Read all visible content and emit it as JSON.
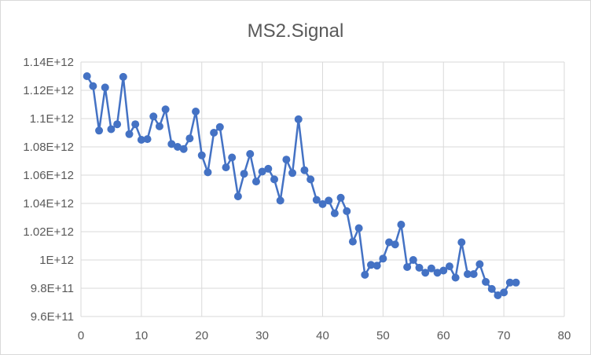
{
  "chart_data": {
    "type": "scatter",
    "title": "MS2.Signal",
    "xlabel": "",
    "ylabel": "",
    "xlim": [
      0,
      80
    ],
    "ylim": [
      960000000000,
      1140000000000
    ],
    "x_ticks": [
      0,
      10,
      20,
      30,
      40,
      50,
      60,
      70,
      80
    ],
    "x_tick_labels": [
      "0",
      "10",
      "20",
      "30",
      "40",
      "50",
      "60",
      "70",
      "80"
    ],
    "y_ticks": [
      960000000000,
      980000000000,
      1000000000000,
      1020000000000,
      1040000000000,
      1060000000000,
      1080000000000,
      1100000000000,
      1120000000000,
      1140000000000
    ],
    "y_tick_labels": [
      "9.6E+11",
      "9.8E+11",
      "1E+12",
      "1.02E+12",
      "1.04E+12",
      "1.06E+12",
      "1.08E+12",
      "1.1E+12",
      "1.12E+12",
      "1.14E+12"
    ],
    "grid": true,
    "legend": "none",
    "color": "#4472c4",
    "series": [
      {
        "name": "MS2.Signal",
        "x": [
          1,
          2,
          3,
          4,
          5,
          6,
          7,
          8,
          9,
          10,
          11,
          12,
          13,
          14,
          15,
          16,
          17,
          18,
          19,
          20,
          21,
          22,
          23,
          24,
          25,
          26,
          27,
          28,
          29,
          30,
          31,
          32,
          33,
          34,
          35,
          36,
          37,
          38,
          39,
          40,
          41,
          42,
          43,
          44,
          45,
          46,
          47,
          48,
          49,
          50,
          51,
          52,
          53,
          54,
          55,
          56,
          57,
          58,
          59,
          60,
          61,
          62,
          63,
          64,
          65,
          66,
          67,
          68,
          69,
          70,
          71,
          72
        ],
        "values": [
          1130000000000,
          1123000000000,
          1091500000000,
          1122000000000,
          1092500000000,
          1096000000000,
          1129500000000,
          1089000000000,
          1096000000000,
          1085000000000,
          1085500000000,
          1101500000000,
          1094500000000,
          1106500000000,
          1082000000000,
          1080000000000,
          1078500000000,
          1086000000000,
          1105000000000,
          1074000000000,
          1062000000000,
          1090000000000,
          1094000000000,
          1065500000000,
          1072500000000,
          1045000000000,
          1061000000000,
          1075000000000,
          1055500000000,
          1062500000000,
          1064500000000,
          1057000000000,
          1042000000000,
          1071000000000,
          1061500000000,
          1099500000000,
          1063500000000,
          1057000000000,
          1042500000000,
          1039500000000,
          1042000000000,
          1033000000000,
          1044000000000,
          1034500000000,
          1013000000000,
          1022500000000,
          989500000000,
          996500000000,
          996000000000,
          1001000000000,
          1012500000000,
          1011000000000,
          1025000000000,
          995000000000,
          1000000000000,
          994500000000,
          991000000000,
          994000000000,
          991000000000,
          992500000000,
          995500000000,
          987500000000,
          1012500000000,
          990000000000,
          990000000000,
          997000000000,
          984500000000,
          979500000000,
          975000000000,
          977000000000,
          984000000000,
          984000000000
        ]
      }
    ]
  }
}
